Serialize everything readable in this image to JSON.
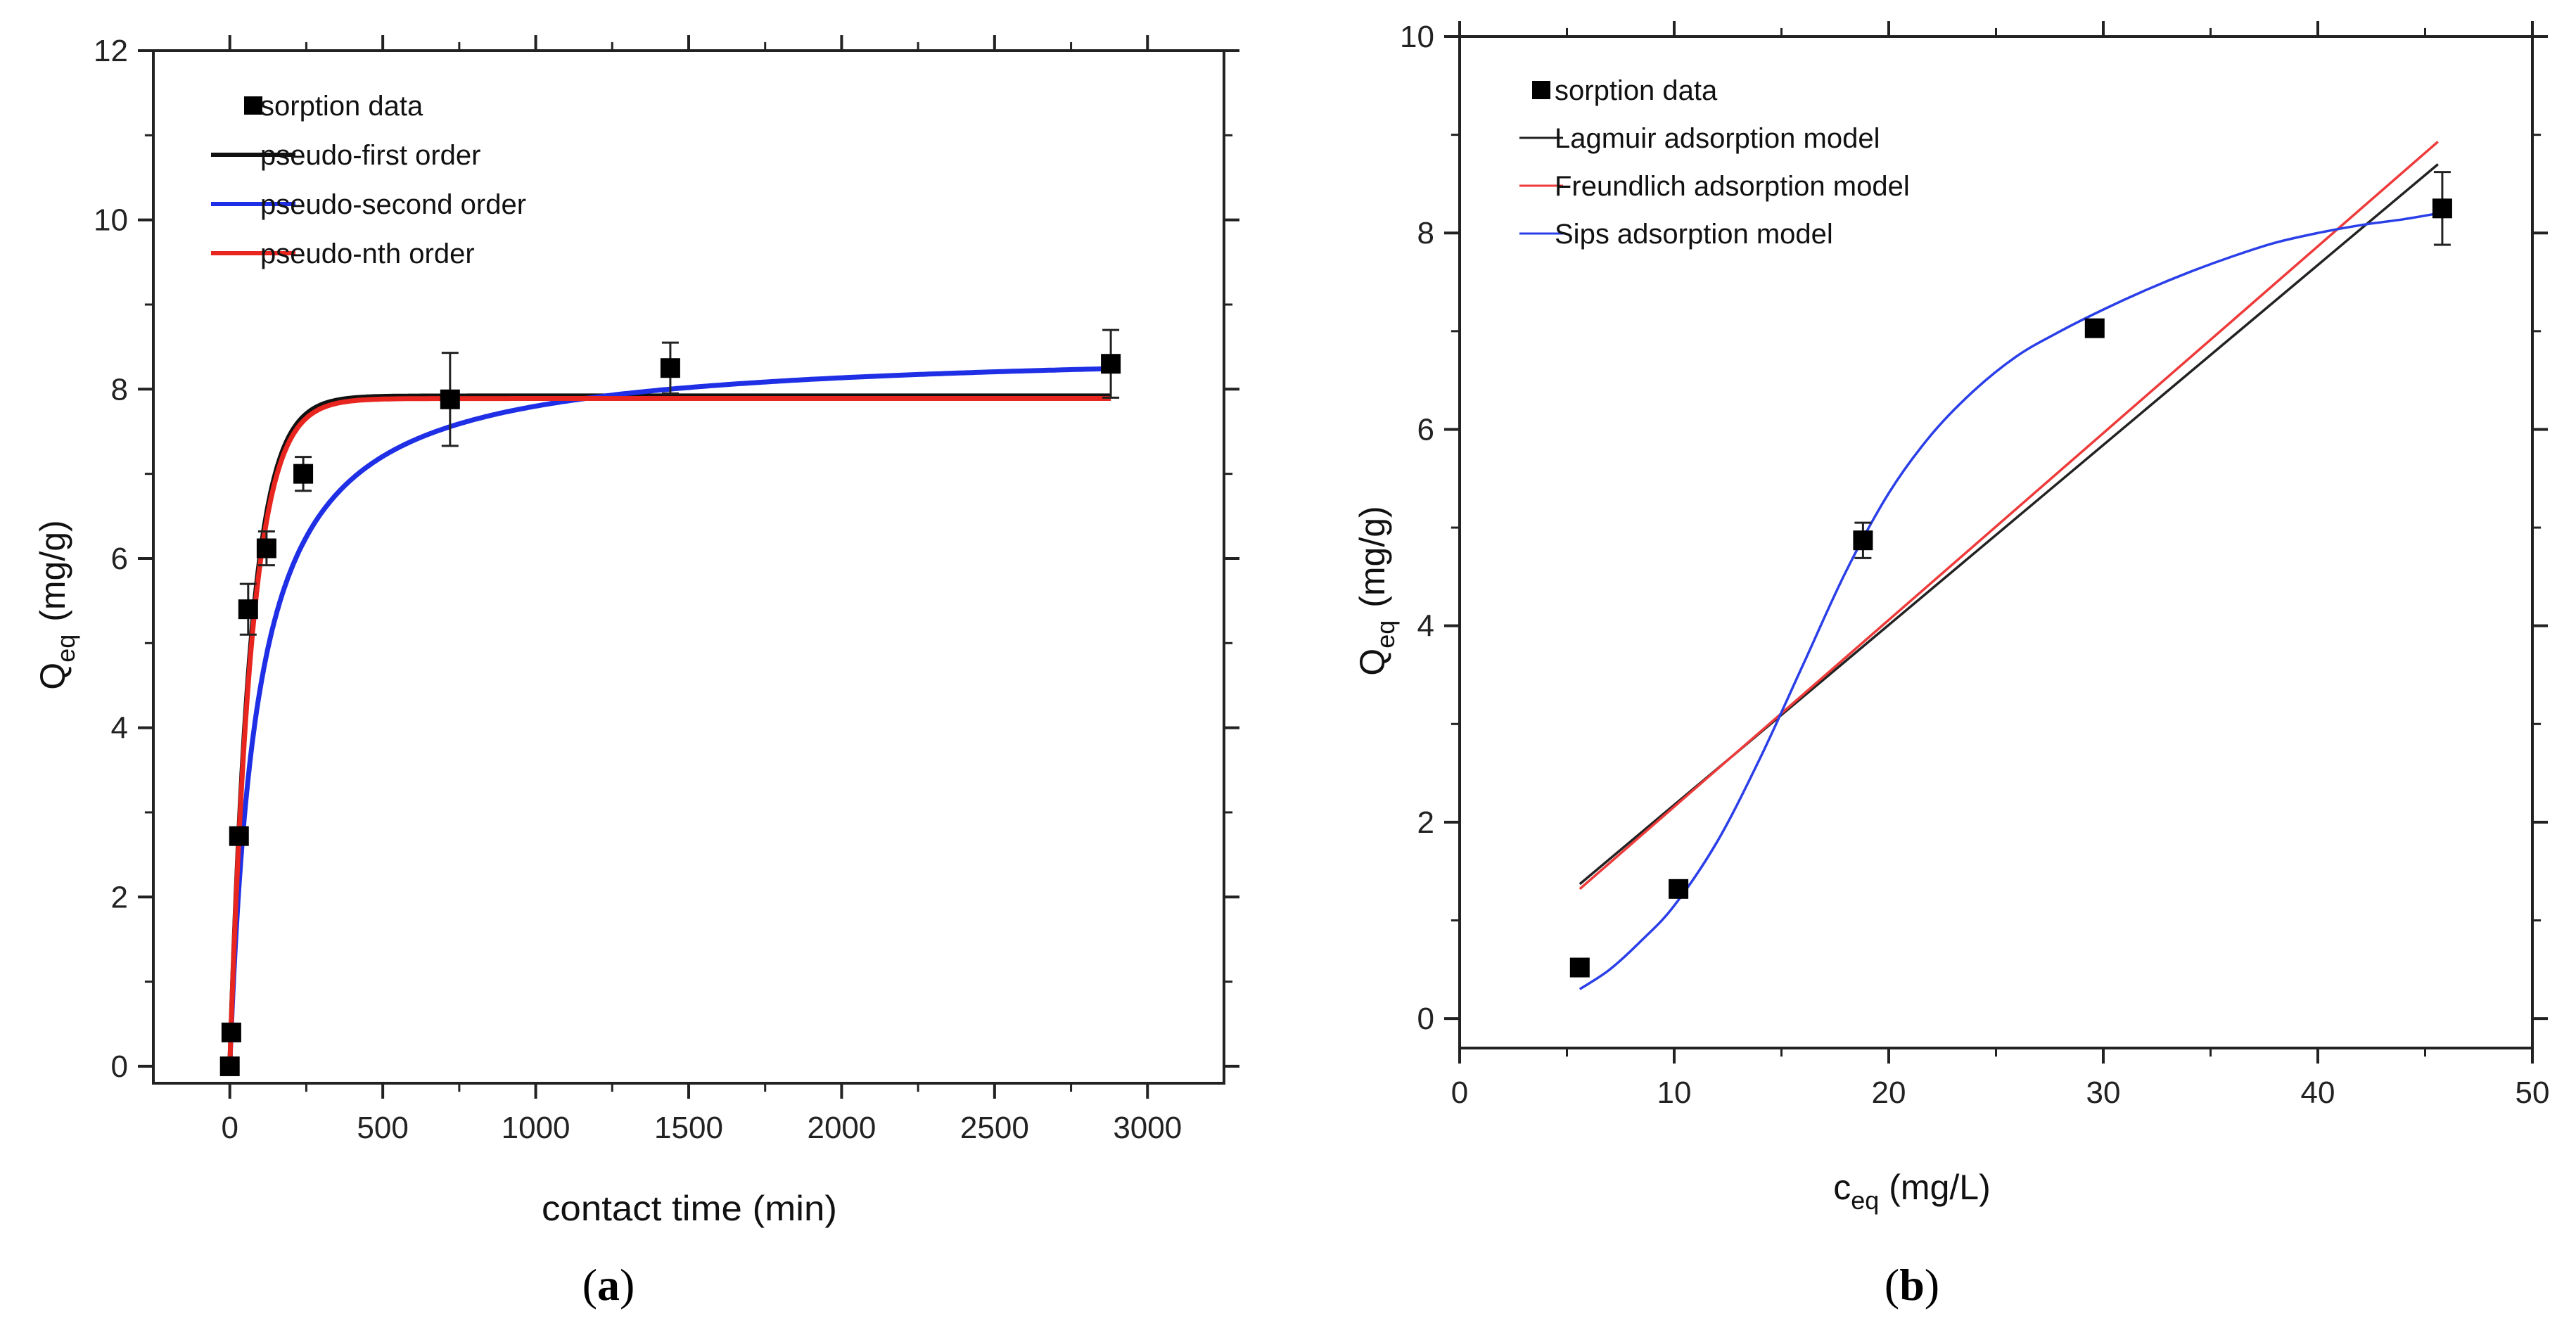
{
  "chart_data": [
    {
      "panel": "a",
      "type": "scatter",
      "title": "",
      "xlabel": "contact time (min)",
      "ylabel_main": "Q",
      "ylabel_sub": "eq",
      "ylabel_units": "(mg/g)",
      "xlim": [
        -250,
        3250
      ],
      "ylim": [
        -0.2,
        12
      ],
      "xticks": [
        0,
        500,
        1000,
        1500,
        2000,
        2500,
        3000
      ],
      "xtick_labels": [
        "0",
        "500",
        "1000",
        "1500",
        "2000",
        "2500",
        "3000"
      ],
      "yticks": [
        0,
        2,
        4,
        6,
        8,
        10,
        12
      ],
      "ytick_labels": [
        "0",
        "2",
        "4",
        "6",
        "8",
        "10",
        "12"
      ],
      "legend_position": "top-left",
      "series": [
        {
          "name": "sorption data",
          "kind": "points",
          "color": "#000000",
          "points": [
            {
              "x": 0,
              "y": 0.0,
              "err": 0.0
            },
            {
              "x": 5,
              "y": 0.4,
              "err": 0.0
            },
            {
              "x": 30,
              "y": 2.72,
              "err": 0.0
            },
            {
              "x": 60,
              "y": 5.4,
              "err": 0.3
            },
            {
              "x": 120,
              "y": 6.12,
              "err": 0.2
            },
            {
              "x": 240,
              "y": 7.0,
              "err": 0.2
            },
            {
              "x": 720,
              "y": 7.88,
              "err": 0.55
            },
            {
              "x": 1440,
              "y": 8.25,
              "err": 0.3
            },
            {
              "x": 2880,
              "y": 8.3,
              "err": 0.4
            }
          ]
        },
        {
          "name": "pseudo-first order",
          "kind": "model",
          "model": "pfo",
          "color": "#111111",
          "qe": 7.92,
          "k": 0.0145,
          "xmax": 2880
        },
        {
          "name": "pseudo-second order",
          "kind": "model",
          "model": "pso",
          "color": "#1f2fe6",
          "qe": 8.5,
          "k": 0.00131,
          "xmax": 2880
        },
        {
          "name": "pseudo-nth order",
          "kind": "model",
          "model": "pfo",
          "color": "#e8261f",
          "qe": 7.89,
          "k": 0.0141,
          "xmax": 2880
        }
      ],
      "panel_label": "a"
    },
    {
      "panel": "b",
      "type": "scatter",
      "title": "",
      "xlabel_main": "c",
      "xlabel_sub": "eq",
      "xlabel_units": "(mg/L)",
      "ylabel_main": "Q",
      "ylabel_sub": "eq",
      "ylabel_units": "(mg/g)",
      "xlim": [
        0,
        50
      ],
      "ylim": [
        -0.3,
        10
      ],
      "xticks": [
        0,
        10,
        20,
        30,
        40,
        50
      ],
      "xtick_labels": [
        "0",
        "10",
        "20",
        "30",
        "40",
        "50"
      ],
      "yticks": [
        0,
        2,
        4,
        6,
        8,
        10
      ],
      "ytick_labels": [
        "0",
        "2",
        "4",
        "6",
        "8",
        "10"
      ],
      "legend_position": "top-left",
      "series": [
        {
          "name": "sorption data",
          "kind": "points",
          "color": "#000000",
          "points": [
            {
              "x": 5.6,
              "y": 0.52,
              "err": 0.0
            },
            {
              "x": 10.2,
              "y": 1.32,
              "err": 0.0
            },
            {
              "x": 18.8,
              "y": 4.87,
              "err": 0.18
            },
            {
              "x": 29.6,
              "y": 7.03,
              "err": 0.0
            },
            {
              "x": 45.8,
              "y": 8.25,
              "err": 0.37
            }
          ]
        },
        {
          "name": "Lagmuir adsorption model",
          "kind": "line",
          "color": "#222222",
          "x": [
            5.6,
            45.6
          ],
          "y": [
            1.37,
            8.7
          ]
        },
        {
          "name": "Freundlich adsorption model",
          "kind": "line",
          "color": "#ee3a3a",
          "x": [
            5.6,
            45.6
          ],
          "y": [
            1.32,
            8.93
          ]
        },
        {
          "name": "Sips adsorption model",
          "kind": "curve",
          "color": "#2a3fe8",
          "x": [
            5.6,
            7,
            8.5,
            10,
            12,
            14,
            16,
            18,
            20,
            22,
            24,
            26,
            28,
            30,
            32,
            34,
            36,
            38,
            40,
            42,
            44,
            45.6
          ],
          "y": [
            0.3,
            0.5,
            0.8,
            1.15,
            1.8,
            2.65,
            3.6,
            4.55,
            5.35,
            5.95,
            6.4,
            6.75,
            7.0,
            7.22,
            7.42,
            7.6,
            7.76,
            7.9,
            8.0,
            8.08,
            8.14,
            8.2
          ]
        }
      ],
      "panel_label": "b"
    }
  ]
}
